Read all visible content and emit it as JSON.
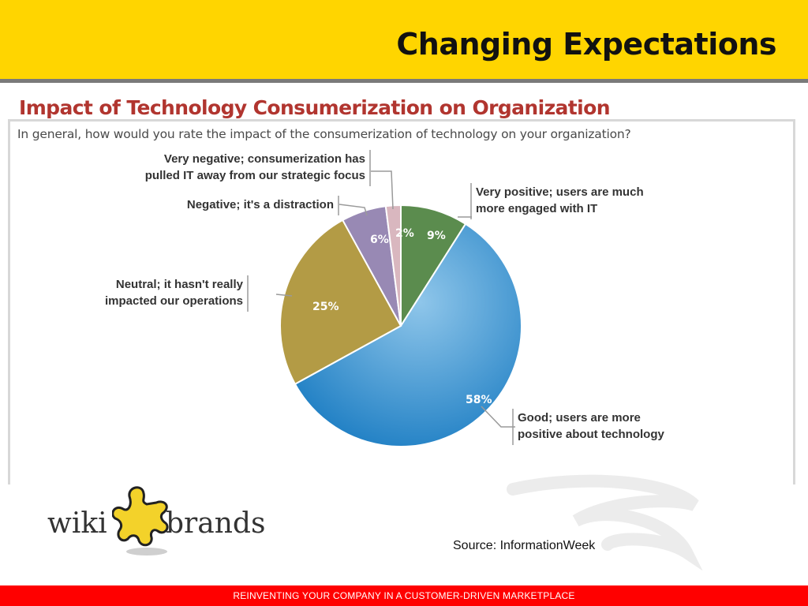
{
  "slide": {
    "title": "Changing Expectations",
    "source": "Source: InformationWeek",
    "footer": "REINVENTING YOUR COMPANY IN A CUSTOMER-DRIVEN MARKETPLACE"
  },
  "logo": {
    "left_word": "wiki",
    "right_word": "brands"
  },
  "chart_data": {
    "type": "pie",
    "title": "Impact of Technology Consumerization on Organization",
    "subtitle": "In general, how would you rate the impact of the consumerization of technology on your organization?",
    "slices": [
      {
        "label": "Very positive; users are much more engaged with IT",
        "label_lines": [
          "Very positive; users are much",
          "more engaged with IT"
        ],
        "value": 9,
        "value_label": "9%",
        "color": "#5b8c4e"
      },
      {
        "label": "Good; users are more positive about technology",
        "label_lines": [
          "Good; users are more",
          "positive about technology"
        ],
        "value": 58,
        "value_label": "58%",
        "color": "#2f8fd0"
      },
      {
        "label": "Neutral; it hasn't really impacted our operations",
        "label_lines": [
          "Neutral; it hasn't really",
          "impacted our operations"
        ],
        "value": 25,
        "value_label": "25%",
        "color": "#b39b45"
      },
      {
        "label": "Negative; it's a distraction",
        "label_lines": [
          "Negative; it's a distraction"
        ],
        "value": 6,
        "value_label": "6%",
        "color": "#9889b4"
      },
      {
        "label": "Very negative; consumerization has pulled IT away from our strategic focus",
        "label_lines": [
          "Very negative; consumerization has",
          "pulled IT away from our strategic focus"
        ],
        "value": 2,
        "value_label": "2%",
        "color": "#d9b7bf"
      }
    ]
  }
}
